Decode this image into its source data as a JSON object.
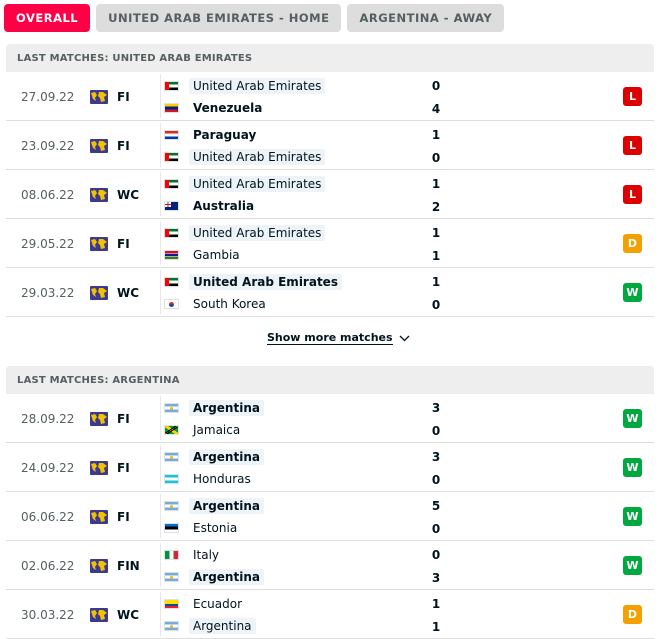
{
  "tabs": [
    {
      "label": "OVERALL",
      "active": true
    },
    {
      "label": "UNITED ARAB EMIRATES - HOME",
      "active": false
    },
    {
      "label": "ARGENTINA - AWAY",
      "active": false
    }
  ],
  "colors": {
    "accent": "#ff0046",
    "loss": "#dc0000",
    "draw": "#f3a000",
    "win": "#00a83f"
  },
  "sections": [
    {
      "header": "LAST MATCHES: UNITED ARAB EMIRATES",
      "matches": [
        {
          "date": "27.09.22",
          "competition": "FI",
          "competition_icon": "world-globe-icon",
          "home": {
            "name": "United Arab Emirates",
            "flag": "uae",
            "highlight": true,
            "winner": false,
            "score": "0"
          },
          "away": {
            "name": "Venezuela",
            "flag": "ven",
            "highlight": false,
            "winner": true,
            "score": "4"
          },
          "result": "L"
        },
        {
          "date": "23.09.22",
          "competition": "FI",
          "competition_icon": "world-globe-icon",
          "home": {
            "name": "Paraguay",
            "flag": "par",
            "highlight": false,
            "winner": true,
            "score": "1"
          },
          "away": {
            "name": "United Arab Emirates",
            "flag": "uae",
            "highlight": true,
            "winner": false,
            "score": "0"
          },
          "result": "L"
        },
        {
          "date": "08.06.22",
          "competition": "WC",
          "competition_icon": "world-globe-icon",
          "home": {
            "name": "United Arab Emirates",
            "flag": "uae",
            "highlight": true,
            "winner": false,
            "score": "1"
          },
          "away": {
            "name": "Australia",
            "flag": "aus",
            "highlight": false,
            "winner": true,
            "score": "2"
          },
          "result": "L"
        },
        {
          "date": "29.05.22",
          "competition": "FI",
          "competition_icon": "world-globe-icon",
          "home": {
            "name": "United Arab Emirates",
            "flag": "uae",
            "highlight": true,
            "winner": false,
            "score": "1"
          },
          "away": {
            "name": "Gambia",
            "flag": "gam",
            "highlight": false,
            "winner": false,
            "score": "1"
          },
          "result": "D"
        },
        {
          "date": "29.03.22",
          "competition": "WC",
          "competition_icon": "world-globe-icon",
          "home": {
            "name": "United Arab Emirates",
            "flag": "uae",
            "highlight": true,
            "winner": true,
            "score": "1"
          },
          "away": {
            "name": "South Korea",
            "flag": "kor",
            "highlight": false,
            "winner": false,
            "score": "0"
          },
          "result": "W"
        }
      ]
    },
    {
      "header": "LAST MATCHES: ARGENTINA",
      "matches": [
        {
          "date": "28.09.22",
          "competition": "FI",
          "competition_icon": "world-globe-icon",
          "home": {
            "name": "Argentina",
            "flag": "arg",
            "highlight": true,
            "winner": true,
            "score": "3"
          },
          "away": {
            "name": "Jamaica",
            "flag": "jam",
            "highlight": false,
            "winner": false,
            "score": "0"
          },
          "result": "W"
        },
        {
          "date": "24.09.22",
          "competition": "FI",
          "competition_icon": "world-globe-icon",
          "home": {
            "name": "Argentina",
            "flag": "arg",
            "highlight": true,
            "winner": true,
            "score": "3"
          },
          "away": {
            "name": "Honduras",
            "flag": "hon",
            "highlight": false,
            "winner": false,
            "score": "0"
          },
          "result": "W"
        },
        {
          "date": "06.06.22",
          "competition": "FI",
          "competition_icon": "world-globe-icon",
          "home": {
            "name": "Argentina",
            "flag": "arg",
            "highlight": true,
            "winner": true,
            "score": "5"
          },
          "away": {
            "name": "Estonia",
            "flag": "est",
            "highlight": false,
            "winner": false,
            "score": "0"
          },
          "result": "W"
        },
        {
          "date": "02.06.22",
          "competition": "FIN",
          "competition_icon": "world-globe-icon",
          "home": {
            "name": "Italy",
            "flag": "ita",
            "highlight": false,
            "winner": false,
            "score": "0"
          },
          "away": {
            "name": "Argentina",
            "flag": "arg",
            "highlight": true,
            "winner": true,
            "score": "3"
          },
          "result": "W"
        },
        {
          "date": "30.03.22",
          "competition": "WC",
          "competition_icon": "world-globe-icon",
          "home": {
            "name": "Ecuador",
            "flag": "ecu",
            "highlight": false,
            "winner": false,
            "score": "1"
          },
          "away": {
            "name": "Argentina",
            "flag": "arg",
            "highlight": true,
            "winner": false,
            "score": "1"
          },
          "result": "D"
        }
      ]
    }
  ],
  "show_more": {
    "label": "Show more matches",
    "icon": "chevron-down-icon"
  }
}
